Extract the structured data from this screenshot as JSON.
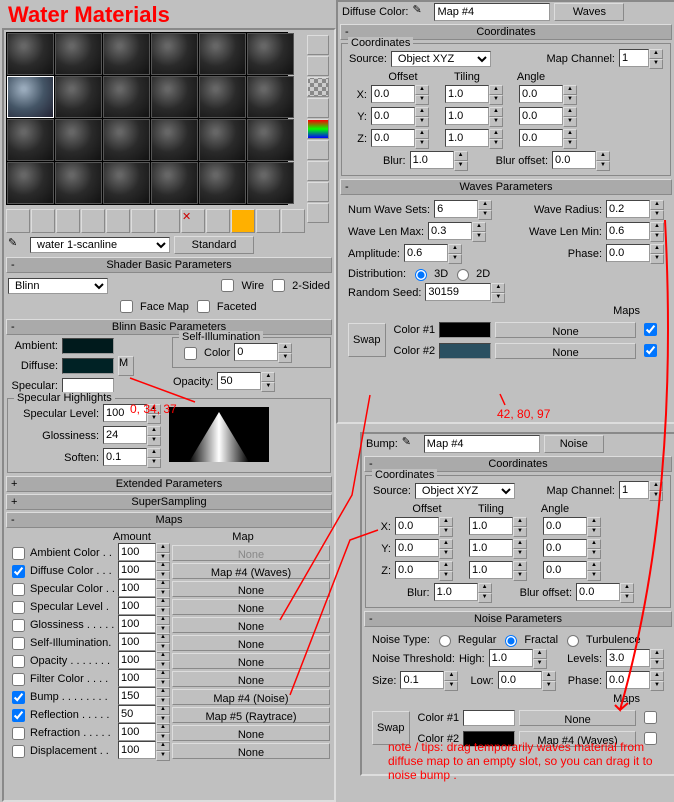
{
  "title": "Water Materials",
  "left": {
    "matName": "water 1-scanline",
    "matType": "Standard",
    "shader_hdr": "Shader Basic Parameters",
    "shaderSel": "Blinn",
    "wire": "Wire",
    "twoSided": "2-Sided",
    "faceMap": "Face Map",
    "faceted": "Faceted",
    "blinn_hdr": "Blinn Basic Parameters",
    "ambient": "Ambient:",
    "diffuse": "Diffuse:",
    "specular": "Specular:",
    "selfIllum": "Self-Illumination",
    "colorLbl": "Color",
    "opacity": "Opacity:",
    "opacityVal": "50",
    "specHigh": "Specular Highlights",
    "specLevel": "Specular Level:",
    "specLevelVal": "100",
    "gloss": "Glossiness:",
    "glossVal": "24",
    "soften": "Soften:",
    "softenVal": "0.1",
    "ext_hdr": "Extended Parameters",
    "ss_hdr": "SuperSampling",
    "maps_hdr": "Maps",
    "amount": "Amount",
    "map": "Map",
    "maps": [
      {
        "on": false,
        "name": "Ambient Color . .",
        "amt": "100",
        "map": "None",
        "dim": true
      },
      {
        "on": true,
        "name": "Diffuse Color . . .",
        "amt": "100",
        "map": "Map #4  (Waves)"
      },
      {
        "on": false,
        "name": "Specular Color . .",
        "amt": "100",
        "map": "None"
      },
      {
        "on": false,
        "name": "Specular Level .",
        "amt": "100",
        "map": "None"
      },
      {
        "on": false,
        "name": "Glossiness . . . . .",
        "amt": "100",
        "map": "None"
      },
      {
        "on": false,
        "name": "Self-Illumination.",
        "amt": "100",
        "map": "None"
      },
      {
        "on": false,
        "name": "Opacity . . . . . . .",
        "amt": "100",
        "map": "None"
      },
      {
        "on": false,
        "name": "Filter Color . . . .",
        "amt": "100",
        "map": "None"
      },
      {
        "on": true,
        "name": "Bump . . . . . . . .",
        "amt": "150",
        "map": "Map #4  (Noise)"
      },
      {
        "on": true,
        "name": "Reflection . . . . .",
        "amt": "50",
        "map": "Map #5  (Raytrace)"
      },
      {
        "on": false,
        "name": "Refraction . . . . .",
        "amt": "100",
        "map": "None"
      },
      {
        "on": false,
        "name": "Displacement . .",
        "amt": "100",
        "map": "None"
      }
    ],
    "diffuseColor": "#002225",
    "annot1": "0, 34, 37"
  },
  "r1": {
    "diffColor": "Diffuse Color:",
    "mapName": "Map #4",
    "mapType": "Waves",
    "coord_hdr": "Coordinates",
    "coordGrp": "Coordinates",
    "source": "Source:",
    "sourceVal": "Object XYZ",
    "mapChan": "Map Channel:",
    "mapChanVal": "1",
    "offset": "Offset",
    "tiling": "Tiling",
    "angle": "Angle",
    "x": "X:",
    "y": "Y:",
    "z": "Z:",
    "v0": "0.0",
    "v1": "1.0",
    "blur": "Blur:",
    "blurVal": "1.0",
    "blurOff": "Blur offset:",
    "blurOffVal": "0.0",
    "waves_hdr": "Waves Parameters",
    "numWave": "Num Wave Sets:",
    "numWaveVal": "6",
    "waveRad": "Wave Radius:",
    "waveRadVal": "0.2",
    "waveLenMax": "Wave Len Max:",
    "waveLenMaxVal": "0.3",
    "waveLenMin": "Wave Len Min:",
    "waveLenMinVal": "0.6",
    "amplitude": "Amplitude:",
    "amplitudeVal": "0.6",
    "phase": "Phase:",
    "phaseVal": "0.0",
    "distribution": "Distribution:",
    "d3d": "3D",
    "d2d": "2D",
    "randSeed": "Random Seed:",
    "randSeedVal": "30159",
    "mapsLbl": "Maps",
    "swap": "Swap",
    "color1": "Color #1",
    "color2": "Color #2",
    "none": "None",
    "c1": "#000000",
    "c2": "#2a5061",
    "annot2": "42, 80, 97"
  },
  "r2": {
    "bump": "Bump:",
    "mapName": "Map #4",
    "mapType": "Noise",
    "coord_hdr": "Coordinates",
    "coordGrp": "Coordinates",
    "source": "Source:",
    "sourceVal": "Object XYZ",
    "mapChan": "Map Channel:",
    "mapChanVal": "1",
    "offset": "Offset",
    "tiling": "Tiling",
    "angle": "Angle",
    "x": "X:",
    "y": "Y:",
    "z": "Z:",
    "v0": "0.0",
    "v1": "1.0",
    "blur": "Blur:",
    "blurVal": "1.0",
    "blurOff": "Blur offset:",
    "blurOffVal": "0.0",
    "noise_hdr": "Noise Parameters",
    "noiseType": "Noise Type:",
    "regular": "Regular",
    "fractal": "Fractal",
    "turb": "Turbulence",
    "noiseThresh": "Noise Threshold:",
    "high": "High:",
    "highVal": "1.0",
    "levels": "Levels:",
    "levelsVal": "3.0",
    "size": "Size:",
    "sizeVal": "0.1",
    "low": "Low:",
    "lowVal": "0.0",
    "phase": "Phase:",
    "phaseVal": "0.0",
    "mapsLbl": "Maps",
    "swap": "Swap",
    "color1": "Color #1",
    "color2": "Color #2",
    "none": "None",
    "c1": "#ffffff",
    "c2": "#000000",
    "map2": "Map #4  (Waves)"
  },
  "note": "note / tips: drag temporarily waves material from diffuse map to an empty slot, so you can drag it to noise bump ."
}
